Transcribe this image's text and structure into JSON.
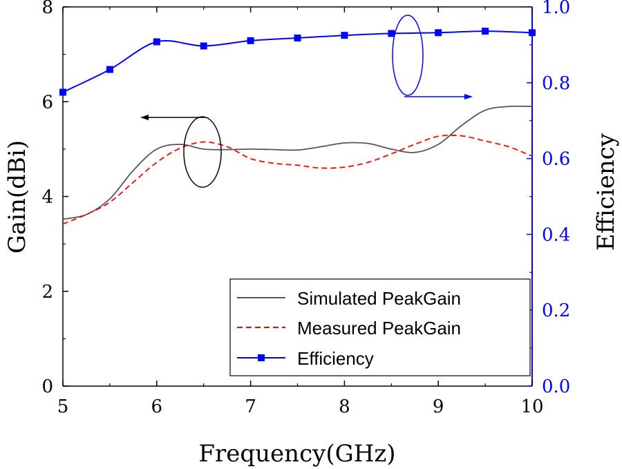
{
  "colors": {
    "left_axis": "#000000",
    "right_axis": "#0000ff",
    "simulated": "#555555",
    "measured": "#ff0000",
    "efficiency": "#0000ff",
    "annotation_left": "#000000",
    "annotation_right": "#0000ff"
  },
  "chart_data": {
    "type": "line",
    "xlabel": "Frequency(GHz)",
    "ylabel": "Gain(dBi)",
    "y2label": "Efficiency",
    "xlim": [
      5,
      10
    ],
    "ylim": [
      0,
      8
    ],
    "y2lim": [
      0.0,
      1.0
    ],
    "x_ticks": [
      "5",
      "6",
      "7",
      "8",
      "9",
      "10"
    ],
    "y_ticks": [
      "0",
      "2",
      "4",
      "6",
      "8"
    ],
    "y2_ticks": [
      "0.0",
      "0.2",
      "0.4",
      "0.6",
      "0.8",
      "1.0"
    ],
    "grid": false,
    "legend_position": "bottom-right",
    "series": [
      {
        "name": "Simulated PeakGain",
        "axis": "left",
        "style": "solid",
        "x": [
          5.0,
          5.25,
          5.5,
          5.75,
          6.0,
          6.25,
          6.5,
          6.75,
          7.0,
          7.25,
          7.5,
          7.75,
          8.0,
          8.25,
          8.5,
          8.75,
          9.0,
          9.25,
          9.5,
          9.75,
          10.0
        ],
        "values": [
          3.52,
          3.62,
          3.95,
          4.55,
          5.0,
          5.1,
          5.0,
          4.99,
          5.0,
          4.99,
          4.98,
          5.05,
          5.13,
          5.12,
          5.0,
          4.93,
          5.1,
          5.5,
          5.82,
          5.9,
          5.9
        ]
      },
      {
        "name": "Measured PeakGain",
        "axis": "left",
        "style": "dashed",
        "x": [
          5.0,
          5.25,
          5.5,
          5.75,
          6.0,
          6.25,
          6.5,
          6.75,
          7.0,
          7.25,
          7.5,
          7.75,
          8.0,
          8.25,
          8.5,
          8.75,
          9.0,
          9.25,
          9.5,
          9.75,
          10.0
        ],
        "values": [
          3.42,
          3.62,
          3.88,
          4.3,
          4.72,
          5.02,
          5.15,
          5.05,
          4.8,
          4.7,
          4.66,
          4.6,
          4.62,
          4.72,
          4.9,
          5.1,
          5.27,
          5.28,
          5.17,
          5.05,
          4.85
        ]
      },
      {
        "name": "Efficiency",
        "axis": "right",
        "style": "solid-square-markers",
        "x": [
          5.0,
          5.5,
          6.0,
          6.5,
          7.0,
          7.5,
          8.0,
          8.5,
          9.0,
          9.5,
          10.0
        ],
        "values": [
          0.775,
          0.835,
          0.908,
          0.897,
          0.911,
          0.918,
          0.925,
          0.93,
          0.932,
          0.936,
          0.932
        ]
      }
    ]
  }
}
